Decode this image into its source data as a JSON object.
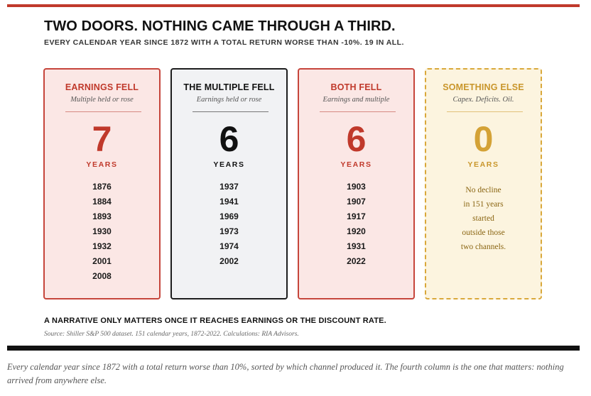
{
  "figure": {
    "title": "TWO DOORS. NOTHING CAME THROUGH A THIRD.",
    "subtitle": "EVERY CALENDAR YEAR SINCE 1872 WITH A TOTAL RETURN WORSE THAN -10%. 19 IN ALL.",
    "cards": [
      {
        "title": "EARNINGS FELL",
        "subtitle": "Multiple held or rose",
        "count": "7",
        "unit": "YEARS",
        "years": [
          "1876",
          "1884",
          "1893",
          "1930",
          "1932",
          "2001",
          "2008"
        ]
      },
      {
        "title": "THE MULTIPLE FELL",
        "subtitle": "Earnings held or rose",
        "count": "6",
        "unit": "YEARS",
        "years": [
          "1937",
          "1941",
          "1969",
          "1973",
          "1974",
          "2002"
        ]
      },
      {
        "title": "BOTH FELL",
        "subtitle": "Earnings and multiple",
        "count": "6",
        "unit": "YEARS",
        "years": [
          "1903",
          "1907",
          "1917",
          "1920",
          "1931",
          "2022"
        ]
      },
      {
        "title": "SOMETHING ELSE",
        "subtitle": "Capex. Deficits. Oil.",
        "count": "0",
        "unit": "YEARS",
        "note_lines": [
          "No decline",
          "in 151 years",
          "started",
          "outside those",
          "two channels."
        ]
      }
    ],
    "takeaway": "A NARRATIVE ONLY MATTERS ONCE IT REACHES EARNINGS OR THE DISCOUNT RATE.",
    "source": "Source: Shiller S&P 500 dataset. 151 calendar years, 1872-2022. Calculations: RIA Advisors."
  },
  "caption": "Every calendar year since 1872 with a total return worse than 10%, sorted by which channel produced it. The fourth column is the one that matters: nothing arrived from anywhere else.",
  "colors": {
    "accent_red": "#c0392b",
    "dark": "#111111",
    "gold": "#d4a236"
  }
}
